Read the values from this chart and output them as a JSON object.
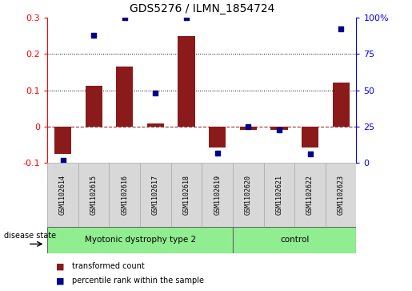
{
  "title": "GDS5276 / ILMN_1854724",
  "samples": [
    "GSM1102614",
    "GSM1102615",
    "GSM1102616",
    "GSM1102617",
    "GSM1102618",
    "GSM1102619",
    "GSM1102620",
    "GSM1102621",
    "GSM1102622",
    "GSM1102623"
  ],
  "bar_values": [
    -0.075,
    0.112,
    0.165,
    0.008,
    0.248,
    -0.058,
    -0.008,
    -0.008,
    -0.058,
    0.122
  ],
  "dot_pct": [
    2,
    88,
    100,
    48,
    100,
    7,
    25,
    23,
    6,
    92
  ],
  "groups": [
    {
      "label": "Myotonic dystrophy type 2",
      "start": 0,
      "end": 6,
      "color": "#90EE90"
    },
    {
      "label": "control",
      "start": 6,
      "end": 10,
      "color": "#90EE90"
    }
  ],
  "ylim_left": [
    -0.1,
    0.3
  ],
  "ylim_right": [
    0,
    100
  ],
  "yticks_left": [
    -0.1,
    0.0,
    0.1,
    0.2,
    0.3
  ],
  "yticks_right": [
    0,
    25,
    50,
    75,
    100
  ],
  "bar_color": "#8B1A1A",
  "dot_color": "#00008B",
  "background_color": "#ffffff",
  "bar_width": 0.55,
  "disease_state_label": "disease state",
  "legend_items": [
    "transformed count",
    "percentile rank within the sample"
  ]
}
